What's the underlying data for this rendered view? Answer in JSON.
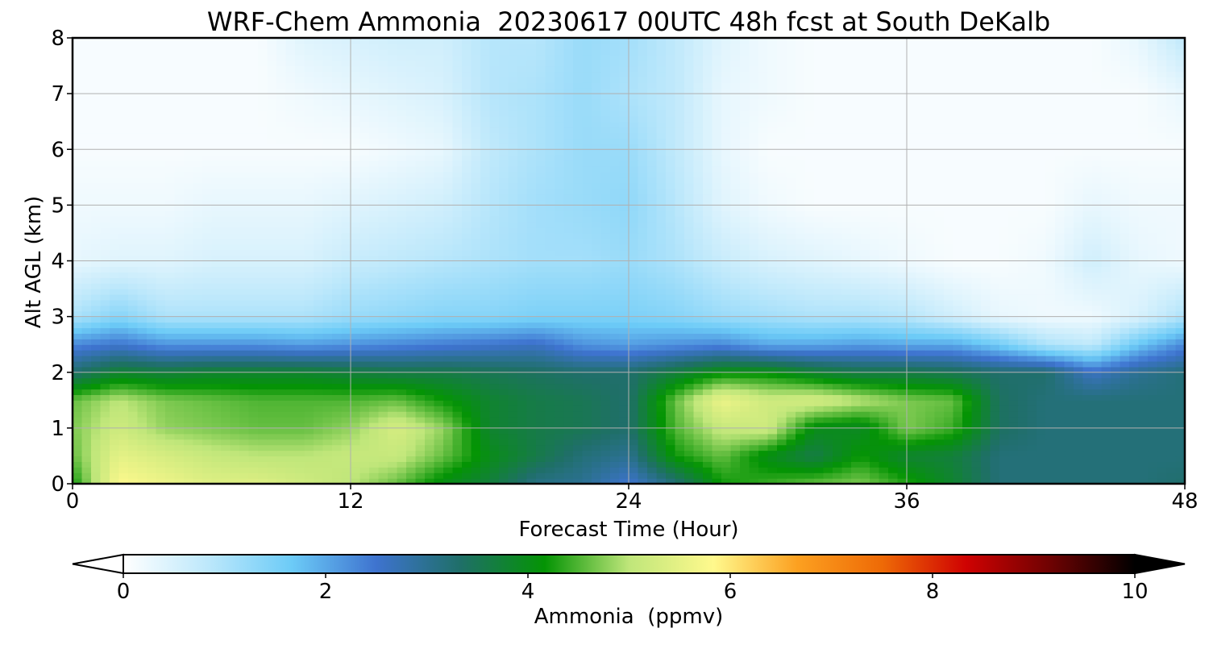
{
  "chart_data": {
    "type": "heatmap",
    "title": "WRF-Chem Ammonia  20230617 00UTC 48h fcst at South DeKalb",
    "xlabel": "Forecast Time (Hour)",
    "ylabel": "Alt AGL (km)",
    "xlim": [
      0,
      48
    ],
    "ylim": [
      0,
      8
    ],
    "x_ticks": [
      "0",
      "12",
      "24",
      "36",
      "48"
    ],
    "y_ticks": [
      "0",
      "1",
      "2",
      "3",
      "4",
      "5",
      "6",
      "7",
      "8"
    ],
    "grid": true,
    "hours": [
      0,
      2,
      4,
      6,
      8,
      10,
      12,
      14,
      16,
      18,
      20,
      22,
      24,
      26,
      28,
      30,
      32,
      34,
      36,
      38,
      40,
      42,
      44,
      46,
      48
    ],
    "altitudes_km": [
      0,
      0.5,
      1,
      1.5,
      2,
      2.5,
      3,
      4,
      5,
      6,
      7,
      8
    ],
    "values_ppmv": [
      [
        4.2,
        5.8,
        5.6,
        5.4,
        5.4,
        5.2,
        5.0,
        4.6,
        4.0,
        3.7,
        3.1,
        3.0,
        2.5,
        3.2,
        4.2,
        4.4,
        4.6,
        4.7,
        4.3,
        3.8,
        3.2,
        3.2,
        3.2,
        3.2,
        3.3
      ],
      [
        4.6,
        5.5,
        5.3,
        5.1,
        5.0,
        5.0,
        5.1,
        5.1,
        4.6,
        4.0,
        3.6,
        3.2,
        3.0,
        4.2,
        4.6,
        4.0,
        3.6,
        4.2,
        3.8,
        3.7,
        3.2,
        3.2,
        3.2,
        3.2,
        3.2
      ],
      [
        4.7,
        5.2,
        4.8,
        4.7,
        4.6,
        4.6,
        4.8,
        5.3,
        4.8,
        3.8,
        3.6,
        3.5,
        3.3,
        4.5,
        5.1,
        5.2,
        4.0,
        3.9,
        4.7,
        4.4,
        3.4,
        3.2,
        3.2,
        3.2,
        3.2
      ],
      [
        4.6,
        5.0,
        4.7,
        4.6,
        4.5,
        4.5,
        4.5,
        4.6,
        4.2,
        3.8,
        3.6,
        3.5,
        3.3,
        4.6,
        5.6,
        5.2,
        5.3,
        5.0,
        4.7,
        4.6,
        3.4,
        3.2,
        3.2,
        3.2,
        3.2
      ],
      [
        3.3,
        3.8,
        3.7,
        3.8,
        3.8,
        3.8,
        3.7,
        3.6,
        3.6,
        3.5,
        3.4,
        3.3,
        3.3,
        3.7,
        4.1,
        4.1,
        3.8,
        3.6,
        3.6,
        3.5,
        3.3,
        3.3,
        2.6,
        3.0,
        3.2
      ],
      [
        2.3,
        2.5,
        2.2,
        2.2,
        2.2,
        2.1,
        2.2,
        2.3,
        2.4,
        2.5,
        2.6,
        2.2,
        2.1,
        2.2,
        2.3,
        2.0,
        2.0,
        2.1,
        2.0,
        2.0,
        1.6,
        1.0,
        0.8,
        1.7,
        2.3
      ],
      [
        1.0,
        1.4,
        1.0,
        1.0,
        1.0,
        1.0,
        1.2,
        1.3,
        1.4,
        1.4,
        1.5,
        1.5,
        1.5,
        1.4,
        1.2,
        1.1,
        1.0,
        1.0,
        0.9,
        0.6,
        0.3,
        0.2,
        0.2,
        0.5,
        1.0
      ],
      [
        0.3,
        0.4,
        0.4,
        0.5,
        0.5,
        0.5,
        0.7,
        0.8,
        0.9,
        1.0,
        1.1,
        1.1,
        1.2,
        1.0,
        0.7,
        0.5,
        0.4,
        0.3,
        0.2,
        0.1,
        0.1,
        0.2,
        0.6,
        0.3,
        0.2
      ],
      [
        0.2,
        0.2,
        0.2,
        0.3,
        0.3,
        0.3,
        0.4,
        0.5,
        0.6,
        0.9,
        1.1,
        1.2,
        1.3,
        0.9,
        0.4,
        0.2,
        0.1,
        0.1,
        0.1,
        0.1,
        0.1,
        0.1,
        0.3,
        0.2,
        0.2
      ],
      [
        0.1,
        0.1,
        0.1,
        0.1,
        0.1,
        0.1,
        0.1,
        0.2,
        0.3,
        0.8,
        1.0,
        1.2,
        1.2,
        0.8,
        0.3,
        0.1,
        0.1,
        0.1,
        0.1,
        0.1,
        0.1,
        0.1,
        0.1,
        0.1,
        0.1
      ],
      [
        0.1,
        0.1,
        0.1,
        0.1,
        0.1,
        0.2,
        0.3,
        0.4,
        0.5,
        0.9,
        1.0,
        1.2,
        1.0,
        0.8,
        0.3,
        0.2,
        0.1,
        0.1,
        0.1,
        0.1,
        0.1,
        0.1,
        0.1,
        0.1,
        0.3
      ],
      [
        0.1,
        0.1,
        0.1,
        0.1,
        0.1,
        0.4,
        0.5,
        0.6,
        0.6,
        0.9,
        0.9,
        1.2,
        1.1,
        0.8,
        0.4,
        0.2,
        0.1,
        0.1,
        0.1,
        0.1,
        0.1,
        0.1,
        0.1,
        0.3,
        0.8
      ]
    ],
    "colorbar": {
      "label": "Ammonia  (ppmv)",
      "range": [
        0,
        10
      ],
      "ticks": [
        "0",
        "2",
        "4",
        "6",
        "8",
        "10"
      ],
      "extend": "both",
      "colors": [
        "#ffffff",
        "#bde8fb",
        "#6ccbf7",
        "#3e73cf",
        "#1f6f68",
        "#049404",
        "#bfe67a",
        "#fff98d",
        "#fca020",
        "#ee6a06",
        "#cf0202",
        "#6e0202",
        "#000000"
      ]
    }
  }
}
